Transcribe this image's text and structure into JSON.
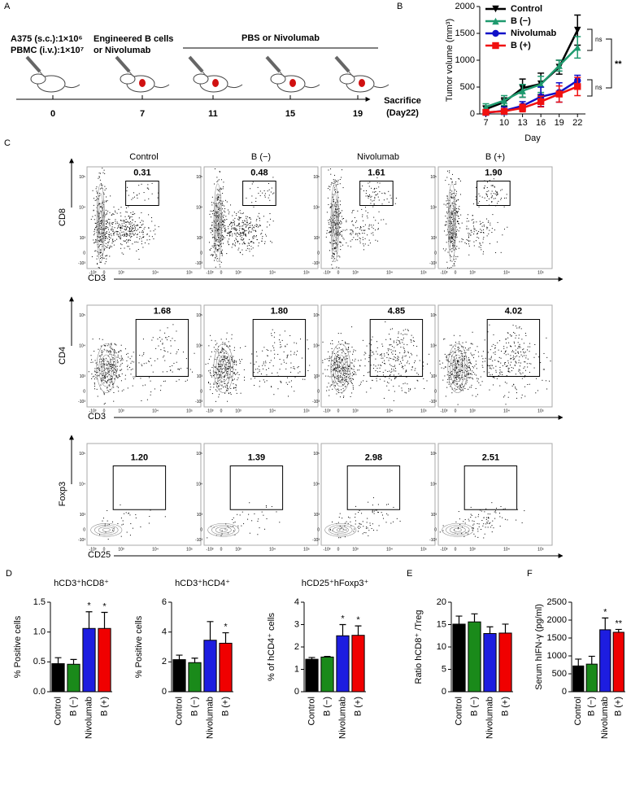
{
  "panel_A": {
    "label": "A",
    "inoculation": [
      "A375 (s.c.):1×10⁶",
      "PBMC (i.v.):1×10⁷"
    ],
    "first_treatment": [
      "Engineered B cells",
      "or Nivolumab"
    ],
    "repeat_treatment": "PBS or Nivolumab",
    "days": [
      0,
      7,
      11,
      15,
      19
    ],
    "end": [
      "Sacrifice",
      "(Day22)"
    ]
  },
  "flow": {
    "label": "C",
    "columns": [
      "Control",
      "B (−)",
      "Nivolumab",
      "B (+)"
    ],
    "rows": [
      {
        "y_label": "CD8",
        "x_label": "CD3",
        "gates": [
          "0.31",
          "0.48",
          "1.61",
          "1.90"
        ]
      },
      {
        "y_label": "CD4",
        "x_label": "CD3",
        "gates": [
          "1.68",
          "1.80",
          "4.85",
          "4.02"
        ]
      },
      {
        "y_label": "Foxp3",
        "x_label": "CD25",
        "gates": [
          "1.20",
          "1.39",
          "2.98",
          "2.51"
        ]
      }
    ],
    "axis_ticks": [
      "-10³",
      "0",
      "10³",
      "10⁴",
      "10⁵"
    ]
  },
  "chart_data": [
    {
      "type": "line",
      "panel": "B",
      "x_label": "Day",
      "y_label": "Tumor volume (mm³)",
      "x": [
        7,
        10,
        13,
        16,
        19,
        22
      ],
      "xlim": [
        6,
        23.3
      ],
      "xticks": [
        7,
        10,
        13,
        16,
        19,
        22
      ],
      "ylim": [
        0,
        2000
      ],
      "yticks": [
        0,
        500,
        1000,
        1500,
        2000
      ],
      "series": [
        {
          "name": "Control",
          "color": "#000000",
          "marker": "triangle-down",
          "values": [
            90,
            220,
            480,
            560,
            870,
            1560
          ],
          "errors": [
            60,
            80,
            170,
            200,
            130,
            280
          ]
        },
        {
          "name": "B (−)",
          "color": "#1e9a6e",
          "marker": "triangle-up",
          "values": [
            130,
            250,
            430,
            550,
            900,
            1240
          ],
          "errors": [
            60,
            90,
            120,
            150,
            100,
            200
          ]
        },
        {
          "name": "Nivolumab",
          "color": "#1010c8",
          "marker": "circle",
          "values": [
            20,
            60,
            150,
            320,
            400,
            620
          ],
          "errors": [
            40,
            70,
            80,
            180,
            180,
            100
          ]
        },
        {
          "name": "B (+)",
          "color": "#f01010",
          "marker": "square",
          "values": [
            30,
            50,
            110,
            230,
            370,
            510
          ],
          "errors": [
            30,
            50,
            70,
            100,
            150,
            170
          ]
        }
      ],
      "annotations": [
        "ns",
        "**",
        "ns"
      ]
    },
    {
      "type": "bar",
      "panel": "D",
      "title": "hCD3⁺hCD8⁺",
      "y_label": "% Positive cells",
      "categories": [
        "Control",
        "B (−)",
        "Nivolumab",
        "B (+)"
      ],
      "colors": [
        "#000000",
        "#1a8a1a",
        "#1d1de0",
        "#f00000"
      ],
      "values": [
        0.47,
        0.46,
        1.06,
        1.06
      ],
      "errors": [
        0.1,
        0.08,
        0.28,
        0.27
      ],
      "stars": [
        null,
        null,
        "*",
        "*"
      ],
      "ylim": [
        0,
        1.5
      ],
      "yticks": [
        {
          "value": 0,
          "label": "0.0"
        },
        {
          "value": 0.5,
          "label": "0.5"
        },
        {
          "value": 1,
          "label": "1.0"
        },
        {
          "value": 1.5,
          "label": "1.5"
        }
      ]
    },
    {
      "type": "bar",
      "title": "hCD3⁺hCD4⁺",
      "y_label": "% Positive cells",
      "categories": [
        "Control",
        "B (−)",
        "Nivolumab",
        "B (+)"
      ],
      "colors": [
        "#000000",
        "#1a8a1a",
        "#1d1de0",
        "#f00000"
      ],
      "values": [
        2.15,
        1.95,
        3.45,
        3.25
      ],
      "errors": [
        0.3,
        0.3,
        1.25,
        0.7
      ],
      "stars": [
        null,
        null,
        null,
        "*"
      ],
      "ylim": [
        0,
        6
      ],
      "yticks": [
        0,
        2,
        4,
        6
      ]
    },
    {
      "type": "bar",
      "title": "hCD25⁺hFoxp3⁺",
      "y_label": "% of hCD4⁺ cells",
      "categories": [
        "Control",
        "B (−)",
        "Nivolumab",
        "B (+)"
      ],
      "colors": [
        "#000000",
        "#1a8a1a",
        "#1d1de0",
        "#f00000"
      ],
      "values": [
        1.45,
        1.55,
        2.5,
        2.52
      ],
      "errors": [
        0.08,
        0.03,
        0.5,
        0.42
      ],
      "stars": [
        null,
        null,
        "*",
        "*"
      ],
      "ylim": [
        0,
        4
      ],
      "yticks": [
        0,
        1,
        2,
        3,
        4
      ]
    },
    {
      "type": "bar",
      "panel": "E",
      "y_label": "Ratio hCD8⁺ /Treg",
      "categories": [
        "Control",
        "B (−)",
        "Nivolumab",
        "B (+)"
      ],
      "colors": [
        "#000000",
        "#1a8a1a",
        "#1d1de0",
        "#f00000"
      ],
      "values": [
        15.1,
        15.6,
        13,
        13.1
      ],
      "errors": [
        1.8,
        1.8,
        1.5,
        2
      ],
      "ylim": [
        0,
        20
      ],
      "yticks": [
        0,
        5,
        10,
        15,
        20
      ]
    },
    {
      "type": "bar",
      "panel": "F",
      "y_label": "Serum hIFN-γ (pg/ml)",
      "categories": [
        "Control",
        "B (−)",
        "Nivolumab",
        "B (+)"
      ],
      "colors": [
        "#000000",
        "#1a8a1a",
        "#1d1de0",
        "#f00000"
      ],
      "values": [
        720,
        770,
        1730,
        1660
      ],
      "errors": [
        190,
        220,
        330,
        80
      ],
      "stars": [
        null,
        null,
        "*",
        "**"
      ],
      "ylim": [
        0,
        2500
      ],
      "yticks": [
        0,
        500,
        1000,
        1500,
        2000,
        2500
      ]
    }
  ]
}
